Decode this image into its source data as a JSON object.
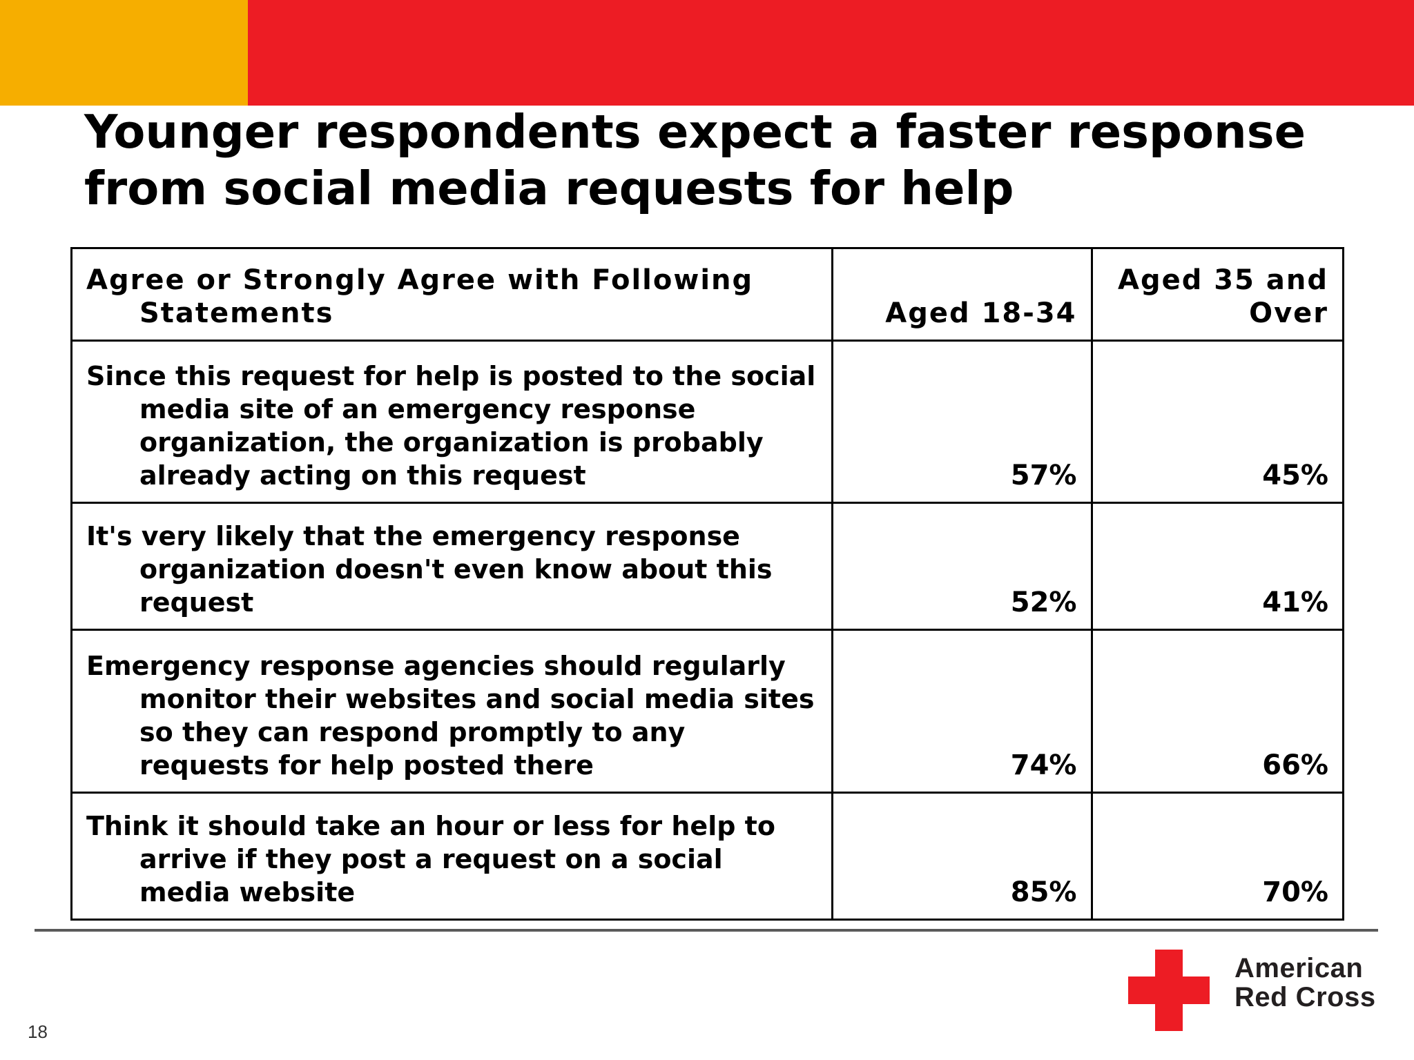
{
  "slide": {
    "title_lines": [
      "Younger respondents expect a faster response",
      "from social media requests for help"
    ],
    "page_number": "18"
  },
  "colors": {
    "band_yellow": "#f6ae00",
    "band_red": "#ed1c24",
    "cross_red": "#ed1c24"
  },
  "table": {
    "headers": [
      "Agree or Strongly Agree with Following Statements",
      "Aged 18-34",
      "Aged 35 and Over"
    ],
    "rows": [
      {
        "statement": "Since this request for help is posted to the social media site of an emergency response organization, the organization is probably already acting on this request",
        "aged_18_34": "57%",
        "aged_35_over": "45%"
      },
      {
        "statement": "It's very likely that the emergency response organization doesn't even know about this request",
        "aged_18_34": "52%",
        "aged_35_over": "41%"
      },
      {
        "statement": "Emergency response agencies should regularly monitor their websites and social media sites so they can respond promptly to any requests for help posted there",
        "aged_18_34": "74%",
        "aged_35_over": "66%"
      },
      {
        "statement": "Think it should take an hour or less for help to arrive if they post a request on a social media website",
        "aged_18_34": "85%",
        "aged_35_over": "70%"
      }
    ]
  },
  "logo": {
    "icon": "red-cross-icon",
    "line1": "American",
    "line2": "Red Cross"
  }
}
